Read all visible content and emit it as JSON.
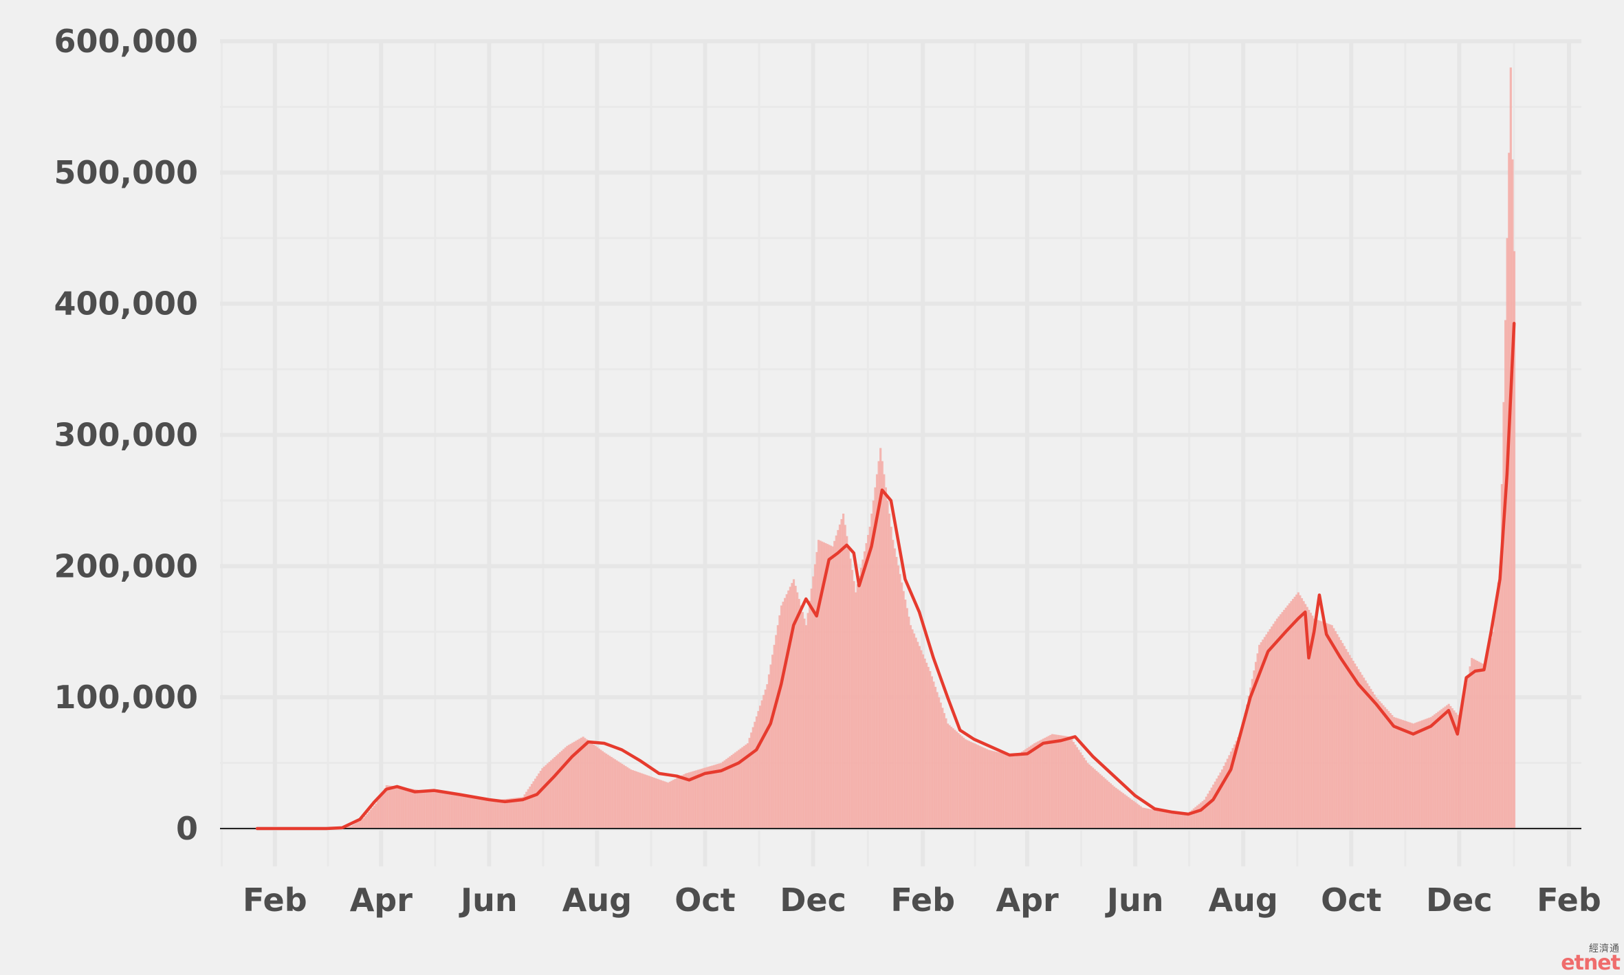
{
  "chart_data": {
    "type": "bar",
    "title": "",
    "xlabel": "",
    "ylabel": "",
    "ylim": [
      0,
      600000
    ],
    "y_ticks": [
      0,
      100000,
      200000,
      300000,
      400000,
      500000,
      600000
    ],
    "y_tick_labels": [
      "0",
      "100,000",
      "200,000",
      "300,000",
      "400,000",
      "500,000",
      "600,000"
    ],
    "x_range": [
      "2020-01-01",
      "2022-02-08"
    ],
    "x_tick_dates": [
      "2020-02-01",
      "2020-04-01",
      "2020-06-01",
      "2020-08-01",
      "2020-10-01",
      "2020-12-01",
      "2021-02-01",
      "2021-04-01",
      "2021-06-01",
      "2021-08-01",
      "2021-10-01",
      "2021-12-01",
      "2022-02-01"
    ],
    "x_tick_labels": [
      "Feb",
      "Apr",
      "Jun",
      "Aug",
      "Oct",
      "Dec",
      "Feb",
      "Apr",
      "Jun",
      "Aug",
      "Oct",
      "Dec",
      "Feb"
    ],
    "grid": true,
    "legend": "none",
    "series": [
      {
        "kind": "bar",
        "color": "#f4aaa5",
        "points": [
          [
            "2020-01-22",
            0
          ],
          [
            "2020-03-01",
            40
          ],
          [
            "2020-03-15",
            1800
          ],
          [
            "2020-03-22",
            8000
          ],
          [
            "2020-03-29",
            19000
          ],
          [
            "2020-04-04",
            33000
          ],
          [
            "2020-04-10",
            32000
          ],
          [
            "2020-04-24",
            29000
          ],
          [
            "2020-05-01",
            30000
          ],
          [
            "2020-05-15",
            25000
          ],
          [
            "2020-06-01",
            21000
          ],
          [
            "2020-06-20",
            24000
          ],
          [
            "2020-07-01",
            46000
          ],
          [
            "2020-07-15",
            63000
          ],
          [
            "2020-07-24",
            70000
          ],
          [
            "2020-08-05",
            58000
          ],
          [
            "2020-08-20",
            45000
          ],
          [
            "2020-09-10",
            35000
          ],
          [
            "2020-09-20",
            42000
          ],
          [
            "2020-10-10",
            50000
          ],
          [
            "2020-10-25",
            65000
          ],
          [
            "2020-11-05",
            110000
          ],
          [
            "2020-11-13",
            170000
          ],
          [
            "2020-11-20",
            190000
          ],
          [
            "2020-11-27",
            155000
          ],
          [
            "2020-12-04",
            220000
          ],
          [
            "2020-12-12",
            215000
          ],
          [
            "2020-12-18",
            240000
          ],
          [
            "2020-12-25",
            180000
          ],
          [
            "2021-01-02",
            230000
          ],
          [
            "2021-01-08",
            290000
          ],
          [
            "2021-01-15",
            220000
          ],
          [
            "2021-01-25",
            155000
          ],
          [
            "2021-02-05",
            120000
          ],
          [
            "2021-02-15",
            80000
          ],
          [
            "2021-02-25",
            68000
          ],
          [
            "2021-03-10",
            60000
          ],
          [
            "2021-03-25",
            55000
          ],
          [
            "2021-04-05",
            65000
          ],
          [
            "2021-04-15",
            72000
          ],
          [
            "2021-04-25",
            70000
          ],
          [
            "2021-05-05",
            50000
          ],
          [
            "2021-05-20",
            32000
          ],
          [
            "2021-06-05",
            16000
          ],
          [
            "2021-06-20",
            12000
          ],
          [
            "2021-07-01",
            12000
          ],
          [
            "2021-07-10",
            22000
          ],
          [
            "2021-07-20",
            45000
          ],
          [
            "2021-07-31",
            75000
          ],
          [
            "2021-08-10",
            140000
          ],
          [
            "2021-08-20",
            160000
          ],
          [
            "2021-09-01",
            180000
          ],
          [
            "2021-09-10",
            160000
          ],
          [
            "2021-09-20",
            155000
          ],
          [
            "2021-10-01",
            130000
          ],
          [
            "2021-10-15",
            100000
          ],
          [
            "2021-10-25",
            85000
          ],
          [
            "2021-11-05",
            80000
          ],
          [
            "2021-11-15",
            85000
          ],
          [
            "2021-11-25",
            95000
          ],
          [
            "2021-12-01",
            85000
          ],
          [
            "2021-12-08",
            130000
          ],
          [
            "2021-12-15",
            125000
          ],
          [
            "2021-12-20",
            150000
          ],
          [
            "2021-12-24",
            200000
          ],
          [
            "2021-12-28",
            450000
          ],
          [
            "2021-12-30",
            580000
          ],
          [
            "2022-01-01",
            440000
          ]
        ]
      },
      {
        "kind": "line",
        "color": "#e63b2e",
        "points": [
          [
            "2020-01-22",
            0
          ],
          [
            "2020-03-01",
            30
          ],
          [
            "2020-03-10",
            600
          ],
          [
            "2020-03-20",
            7000
          ],
          [
            "2020-03-28",
            20000
          ],
          [
            "2020-04-04",
            30000
          ],
          [
            "2020-04-10",
            32000
          ],
          [
            "2020-04-20",
            28000
          ],
          [
            "2020-05-01",
            29000
          ],
          [
            "2020-05-15",
            26000
          ],
          [
            "2020-06-01",
            22000
          ],
          [
            "2020-06-10",
            20500
          ],
          [
            "2020-06-20",
            22000
          ],
          [
            "2020-06-28",
            26000
          ],
          [
            "2020-07-08",
            40000
          ],
          [
            "2020-07-18",
            55000
          ],
          [
            "2020-07-27",
            66000
          ],
          [
            "2020-08-05",
            65000
          ],
          [
            "2020-08-15",
            60000
          ],
          [
            "2020-08-25",
            52000
          ],
          [
            "2020-09-05",
            42000
          ],
          [
            "2020-09-15",
            40000
          ],
          [
            "2020-09-22",
            37000
          ],
          [
            "2020-10-01",
            42000
          ],
          [
            "2020-10-10",
            44000
          ],
          [
            "2020-10-20",
            50000
          ],
          [
            "2020-10-30",
            60000
          ],
          [
            "2020-11-07",
            80000
          ],
          [
            "2020-11-13",
            110000
          ],
          [
            "2020-11-20",
            155000
          ],
          [
            "2020-11-27",
            175000
          ],
          [
            "2020-12-03",
            162000
          ],
          [
            "2020-12-10",
            205000
          ],
          [
            "2020-12-15",
            210000
          ],
          [
            "2020-12-20",
            216000
          ],
          [
            "2020-12-24",
            210000
          ],
          [
            "2020-12-27",
            185000
          ],
          [
            "2021-01-03",
            215000
          ],
          [
            "2021-01-09",
            258000
          ],
          [
            "2021-01-14",
            250000
          ],
          [
            "2021-01-22",
            190000
          ],
          [
            "2021-01-30",
            165000
          ],
          [
            "2021-02-07",
            130000
          ],
          [
            "2021-02-15",
            100000
          ],
          [
            "2021-02-22",
            75000
          ],
          [
            "2021-03-02",
            68000
          ],
          [
            "2021-03-12",
            62000
          ],
          [
            "2021-03-22",
            56000
          ],
          [
            "2021-04-01",
            57000
          ],
          [
            "2021-04-10",
            65000
          ],
          [
            "2021-04-20",
            67000
          ],
          [
            "2021-04-28",
            70000
          ],
          [
            "2021-05-08",
            55000
          ],
          [
            "2021-05-20",
            40000
          ],
          [
            "2021-06-01",
            25000
          ],
          [
            "2021-06-12",
            15000
          ],
          [
            "2021-06-22",
            12500
          ],
          [
            "2021-07-01",
            11000
          ],
          [
            "2021-07-08",
            14000
          ],
          [
            "2021-07-15",
            22000
          ],
          [
            "2021-07-25",
            45000
          ],
          [
            "2021-08-05",
            100000
          ],
          [
            "2021-08-15",
            135000
          ],
          [
            "2021-08-25",
            150000
          ],
          [
            "2021-09-01",
            160000
          ],
          [
            "2021-09-05",
            165000
          ],
          [
            "2021-09-07",
            130000
          ],
          [
            "2021-09-10",
            150000
          ],
          [
            "2021-09-13",
            178000
          ],
          [
            "2021-09-17",
            148000
          ],
          [
            "2021-09-25",
            130000
          ],
          [
            "2021-10-05",
            110000
          ],
          [
            "2021-10-15",
            95000
          ],
          [
            "2021-10-25",
            78000
          ],
          [
            "2021-11-05",
            72000
          ],
          [
            "2021-11-15",
            78000
          ],
          [
            "2021-11-25",
            90000
          ],
          [
            "2021-11-30",
            72000
          ],
          [
            "2021-12-05",
            115000
          ],
          [
            "2021-12-10",
            120000
          ],
          [
            "2021-12-15",
            121000
          ],
          [
            "2021-12-19",
            150000
          ],
          [
            "2021-12-24",
            190000
          ],
          [
            "2021-12-28",
            270000
          ],
          [
            "2022-01-01",
            385000
          ]
        ]
      }
    ]
  },
  "watermark": {
    "cn": "經濟通",
    "en": "etnet"
  }
}
